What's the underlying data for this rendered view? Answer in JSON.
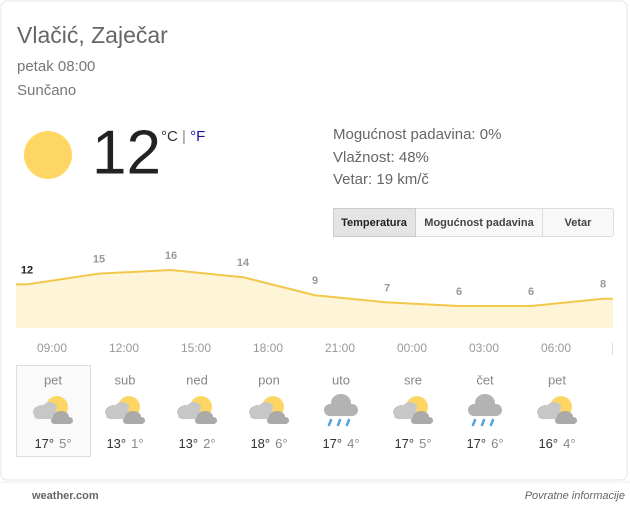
{
  "header": {
    "location": "Vlačić, Zaječar",
    "time": "petak 08:00",
    "condition": "Sunčano"
  },
  "current": {
    "temp": 12,
    "unit_c": "°C",
    "separator": " | ",
    "unit_f": "°F"
  },
  "details": [
    "Mogućnost padavina: 0%",
    "Vlažnost: 48%",
    "Vetar: 19 km/č"
  ],
  "tabs": [
    "Temperatura",
    "Mogućnost padavina",
    "Vetar"
  ],
  "hourly": {
    "temps": [
      12,
      15,
      16,
      14,
      9,
      7,
      6,
      6,
      8
    ],
    "times": [
      "09:00",
      "12:00",
      "15:00",
      "18:00",
      "21:00",
      "00:00",
      "03:00",
      "06:00"
    ]
  },
  "daily": [
    {
      "day": "pet",
      "high": "17°",
      "low": "5°"
    },
    {
      "day": "sub",
      "high": "13°",
      "low": "1°"
    },
    {
      "day": "ned",
      "high": "13°",
      "low": "2°"
    },
    {
      "day": "pon",
      "high": "18°",
      "low": "6°"
    },
    {
      "day": "uto",
      "high": "17°",
      "low": "4°"
    },
    {
      "day": "sre",
      "high": "17°",
      "low": "5°"
    },
    {
      "day": "čet",
      "high": "17°",
      "low": "6°"
    },
    {
      "day": "pet",
      "high": "16°",
      "low": "4°"
    }
  ],
  "footer": {
    "source": "weather.com",
    "feedback": "Povratne informacije"
  }
}
